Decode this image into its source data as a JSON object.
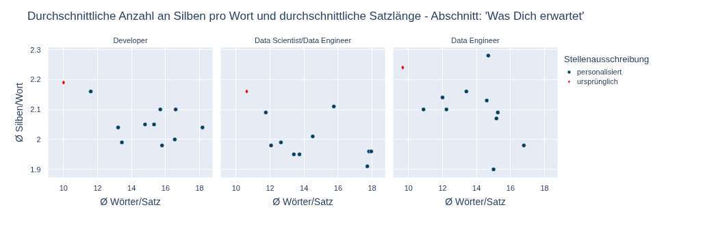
{
  "chart_data": [
    {
      "type": "scatter",
      "title": "Durchschnittliche Anzahl an Silben pro Wort und durchschnittliche Satzlänge - Abschnitt: 'Was Dich erwartet'",
      "subtitle": "Developer",
      "xlabel": "Ø Wörter/Satz",
      "ylabel": "Ø Silben/Wort",
      "xlim": [
        9.1,
        18.76
      ],
      "ylim": [
        1.873,
        2.307
      ],
      "xticks": [
        10,
        12,
        14,
        16,
        18
      ],
      "yticks": [
        1.9,
        2,
        2.1,
        2.2,
        2.3
      ],
      "grid": true,
      "series": [
        {
          "color": "#003f5c",
          "marker": "circle",
          "x": [
            11.6,
            13.21,
            13.43,
            14.79,
            15.32,
            15.69,
            15.79,
            16.54,
            16.59,
            18.17
          ],
          "values": [
            2.16,
            2.04,
            1.99,
            2.05,
            2.05,
            2.1,
            1.98,
            2.0,
            2.1,
            2.04
          ]
        },
        {
          "color": "#e00000",
          "marker": "diamond",
          "x": [
            10.0
          ],
          "values": [
            2.19
          ]
        }
      ]
    },
    {
      "type": "scatter",
      "title": "Data Scientist/Data Engineer",
      "xlabel": "Ø Wörter/Satz",
      "xlim": [
        9.1,
        18.76
      ],
      "ylim": [
        1.873,
        2.307
      ],
      "xticks": [
        10,
        12,
        14,
        16,
        18
      ],
      "yticks": [
        1.9,
        2,
        2.1,
        2.2,
        2.3
      ],
      "grid": true,
      "tick_labels": "x",
      "series": [
        {
          "color": "#003f5c",
          "marker": "circle",
          "x": [
            11.75,
            12.06,
            12.64,
            13.4,
            13.73,
            14.51,
            15.75,
            17.72,
            17.82,
            17.95
          ],
          "values": [
            2.09,
            1.98,
            1.99,
            1.95,
            1.95,
            2.01,
            2.11,
            1.91,
            1.96,
            1.96
          ]
        },
        {
          "color": "#e00000",
          "marker": "diamond",
          "x": [
            10.63
          ],
          "values": [
            2.16
          ]
        }
      ]
    },
    {
      "type": "scatter",
      "title": "Data Engineer",
      "xlabel": "Ø Wörter/Satz",
      "xlim": [
        9.1,
        18.76
      ],
      "ylim": [
        1.873,
        2.307
      ],
      "xticks": [
        10,
        12,
        14,
        16,
        18
      ],
      "yticks": [
        1.9,
        2,
        2.1,
        2.2,
        2.3
      ],
      "grid": true,
      "tick_labels": "x",
      "legend": "top right",
      "legend_title": "Stellenausschreibung",
      "series": [
        {
          "name": "personalisiert",
          "color": "#003f5c",
          "marker": "circle",
          "x": [
            10.88,
            12.0,
            12.23,
            13.4,
            14.6,
            14.69,
            15.0,
            15.17,
            15.25,
            16.78
          ],
          "values": [
            2.1,
            2.14,
            2.1,
            2.16,
            2.13,
            2.28,
            1.9,
            2.07,
            2.09,
            1.98
          ]
        },
        {
          "name": "ursprünglich",
          "color": "#e00000",
          "marker": "diamond",
          "x": [
            9.66
          ],
          "values": [
            2.24
          ]
        }
      ]
    }
  ]
}
